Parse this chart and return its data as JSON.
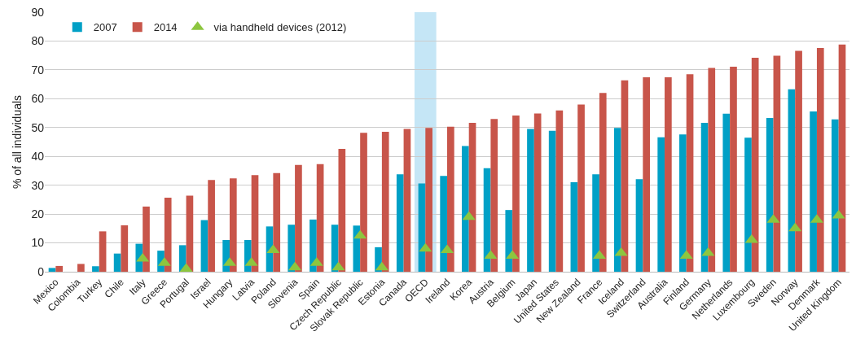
{
  "chart_data": {
    "type": "bar",
    "ylabel": "% of all individuals",
    "categories": [
      "Mexico",
      "Colombia",
      "Turkey",
      "Chile",
      "Italy",
      "Greece",
      "Portugal",
      "Israel",
      "Hungary",
      "Latvia",
      "Poland",
      "Slovenia",
      "Spain",
      "Czech Republic",
      "Slovak Republic",
      "Estonia",
      "Canada",
      "OECD",
      "Ireland",
      "Korea",
      "Austria",
      "Belgium",
      "Japan",
      "United States",
      "New Zealand",
      "France",
      "Iceland",
      "Switzerland",
      "Australia",
      "Finland",
      "Germany",
      "Netherlands",
      "Luxembourg",
      "Sweden",
      "Norway",
      "Denmark",
      "United Kingdom"
    ],
    "series": [
      {
        "name": "2007",
        "color": "#00a0c6",
        "values": [
          1.3,
          null,
          1.9,
          6.3,
          9.7,
          7.3,
          9.2,
          17.9,
          11,
          11,
          15.7,
          16.3,
          18.1,
          16.3,
          16,
          8.5,
          33.8,
          30.6,
          33.2,
          43.6,
          35.9,
          21.4,
          49.5,
          48.9,
          31,
          33.8,
          49.9,
          32.1,
          46.6,
          47.6,
          51.6,
          54.8,
          46.5,
          53.3,
          63.3,
          55.6,
          52.8
        ]
      },
      {
        "name": "2014",
        "color": "#c8554a",
        "values": [
          2,
          2.7,
          14,
          16.1,
          22.6,
          25.7,
          26.4,
          31.8,
          32.4,
          33.5,
          34.2,
          37,
          37.3,
          42.6,
          48.2,
          48.5,
          49.5,
          49.9,
          50.3,
          51.6,
          53,
          54.2,
          54.9,
          55.9,
          58,
          62,
          66.4,
          67.4,
          67.4,
          68.5,
          70.7,
          71.1,
          74.2,
          74.9,
          76.6,
          77.6,
          78.8
        ]
      },
      {
        "name": "via handheld devices (2012)",
        "type": "scatter",
        "marker": "triangle",
        "color": "#8dc63f",
        "values": [
          null,
          null,
          null,
          null,
          4.5,
          3,
          1,
          null,
          3,
          3,
          7.5,
          1.5,
          3,
          1.5,
          12.5,
          1.5,
          null,
          8,
          7.5,
          19,
          5.5,
          5.5,
          null,
          null,
          null,
          5.5,
          6.5,
          null,
          null,
          5.5,
          6.5,
          null,
          11,
          18,
          15,
          18,
          19.5
        ]
      }
    ],
    "bands": [
      {
        "axis": "x",
        "from": "OECD",
        "to": "OECD",
        "color": "#c5e6f6"
      }
    ],
    "ylim": [
      0,
      90
    ],
    "yticks": [
      0,
      10,
      20,
      30,
      40,
      50,
      60,
      70,
      80,
      90
    ],
    "grid": "y",
    "legend": "top left"
  }
}
